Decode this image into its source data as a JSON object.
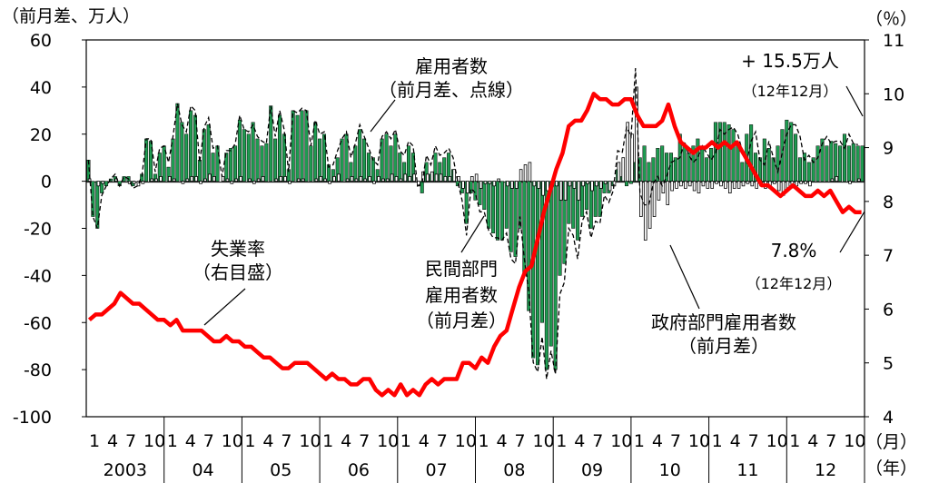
{
  "chart_data": {
    "type": "bar",
    "y_left_unit": "（前月差、万人）",
    "y_right_unit": "（％）",
    "y_left_ticks": [
      "60",
      "40",
      "20",
      "0",
      "-20",
      "-40",
      "-60",
      "-80",
      "-100"
    ],
    "y_right_ticks": [
      "11",
      "10",
      "9",
      "8",
      "7",
      "6",
      "5",
      "4"
    ],
    "ylim_left": [
      -100,
      60
    ],
    "ylim_right": [
      4,
      11
    ],
    "x_month_labels": [
      "1",
      "4",
      "7",
      "10"
    ],
    "x_month_unit": "（月）",
    "x_year_unit": "（年）",
    "year_labels": [
      "2003",
      "04",
      "05",
      "06",
      "07",
      "08",
      "09",
      "10",
      "11",
      "12"
    ],
    "annotations": {
      "total_emp_l1": "雇用者数",
      "total_emp_l2": "（前月差、点線）",
      "latest_l1": "+ 15.5万人",
      "latest_l2": "（12年12月）",
      "unemp_l1": "失業率",
      "unemp_l2": "（右目盛）",
      "private_l1": "民間部門",
      "private_l2": "雇用者数",
      "private_l3": "（前月差）",
      "gov_l1": "政府部門雇用者数",
      "gov_l2": "（前月差）",
      "rate_l1": "7.8%",
      "rate_l2": "（12年12月）"
    },
    "colors": {
      "private_bar": "#1e9b50",
      "government_bar": "#ffffff",
      "unemployment": "#ff0000",
      "total": "#000000"
    },
    "series": [
      {
        "name": "民間部門雇用者数",
        "values": [
          9,
          -15,
          -20,
          -5,
          -2,
          1,
          2,
          -2,
          2,
          2,
          -2,
          0,
          3,
          18,
          17,
          3,
          12,
          15,
          6,
          18,
          33,
          25,
          20,
          30,
          28,
          9,
          22,
          24,
          12,
          15,
          0,
          12,
          14,
          15,
          26,
          22,
          20,
          25,
          18,
          15,
          16,
          32,
          18,
          28,
          20,
          5,
          30,
          28,
          30,
          30,
          15,
          25,
          18,
          20,
          7,
          5,
          10,
          18,
          20,
          8,
          15,
          22,
          18,
          12,
          10,
          5,
          18,
          20,
          15,
          20,
          12,
          8,
          15,
          12,
          0,
          -5,
          8,
          3,
          12,
          8,
          10,
          12,
          5,
          -2,
          -5,
          -18,
          -5,
          -8,
          -10,
          -12,
          -20,
          -22,
          -25,
          -25,
          -20,
          -30,
          -32,
          -20,
          -40,
          -55,
          -75,
          -78,
          -60,
          -80,
          -70,
          -80,
          -40,
          -35,
          -18,
          -20,
          -25,
          -15,
          -12,
          -20,
          -15,
          -15,
          -5,
          -5,
          -2,
          5,
          2,
          -2,
          -1,
          8,
          10,
          15,
          8,
          10,
          14,
          15,
          12,
          12,
          10,
          20,
          15,
          12,
          15,
          18,
          15,
          10,
          14,
          25,
          25,
          25,
          24,
          22,
          15,
          8,
          20,
          24,
          12,
          10,
          18,
          14,
          10,
          15,
          22,
          26,
          25,
          20,
          10,
          12,
          8,
          10,
          15,
          18,
          15,
          17,
          16,
          15,
          20,
          15,
          16,
          15,
          15
        ]
      },
      {
        "name": "政府部門雇用者数",
        "values": [
          1,
          0,
          -2,
          -1,
          0,
          0,
          1,
          0,
          0,
          -1,
          -1,
          -2,
          -1,
          0,
          1,
          1,
          2,
          0,
          2,
          1,
          0,
          -1,
          1,
          2,
          2,
          -1,
          1,
          3,
          2,
          0,
          2,
          1,
          -1,
          1,
          2,
          0,
          1,
          -1,
          1,
          2,
          0,
          0,
          1,
          2,
          2,
          -1,
          0,
          1,
          1,
          0,
          0,
          1,
          2,
          1,
          -1,
          2,
          3,
          0,
          1,
          2,
          1,
          2,
          1,
          2,
          -1,
          2,
          1,
          1,
          3,
          2,
          1,
          3,
          2,
          3,
          -2,
          4,
          3,
          4,
          3,
          3,
          2,
          2,
          5,
          2,
          -3,
          -5,
          2,
          3,
          -3,
          -1,
          -1,
          -2,
          1,
          0,
          -2,
          -3,
          -3,
          5,
          7,
          8,
          -2,
          -3,
          -6,
          -4,
          -2,
          -2,
          -8,
          -8,
          -2,
          -3,
          -8,
          -2,
          -1,
          -4,
          -2,
          -3,
          -1,
          -4,
          -2,
          8,
          10,
          25,
          20,
          40,
          -15,
          -25,
          -20,
          -15,
          -8,
          -5,
          -10,
          -4,
          -3,
          -2,
          -3,
          -2,
          -4,
          -5,
          -2,
          -3,
          -3,
          -1,
          -2,
          -3,
          -5,
          -3,
          -3,
          -2,
          -1,
          -2,
          -3,
          -2,
          -3,
          -3,
          -1,
          -4,
          -6,
          -3,
          -2,
          -2,
          -1,
          -1,
          -2,
          0,
          0,
          0,
          0,
          1,
          2,
          0,
          0,
          -1,
          0,
          1
        ]
      },
      {
        "name": "雇用者数",
        "values": [
          9,
          -15,
          -20,
          -6,
          -2,
          1,
          3,
          -2,
          2,
          1,
          -3,
          -2,
          2,
          18,
          18,
          4,
          14,
          15,
          8,
          19,
          33,
          24,
          21,
          32,
          30,
          8,
          23,
          27,
          14,
          15,
          2,
          13,
          13,
          16,
          28,
          22,
          21,
          24,
          19,
          17,
          16,
          32,
          19,
          30,
          22,
          4,
          30,
          29,
          31,
          30,
          15,
          26,
          20,
          21,
          6,
          7,
          13,
          18,
          21,
          10,
          16,
          24,
          19,
          14,
          9,
          7,
          19,
          21,
          18,
          22,
          13,
          11,
          17,
          15,
          -2,
          -1,
          11,
          7,
          15,
          11,
          12,
          14,
          10,
          0,
          -8,
          -23,
          -3,
          -5,
          -13,
          -13,
          -21,
          -24,
          -24,
          -25,
          -22,
          -33,
          -35,
          -15,
          -33,
          -47,
          -77,
          -81,
          -66,
          -84,
          -72,
          -82,
          -48,
          -43,
          -20,
          -23,
          -33,
          -17,
          -13,
          -24,
          -17,
          -18,
          -6,
          -9,
          -4,
          13,
          12,
          23,
          19,
          48,
          -5,
          -10,
          -10,
          -1,
          2,
          -2,
          2,
          8,
          9,
          10,
          17,
          11,
          8,
          10,
          15,
          12,
          9,
          12,
          22,
          20,
          22,
          23,
          20,
          13,
          8,
          17,
          21,
          9,
          7,
          17,
          10,
          4,
          12,
          20,
          24,
          24,
          19,
          9,
          11,
          8,
          10,
          16,
          19,
          16,
          17,
          17,
          14,
          20,
          16,
          15.5
        ]
      },
      {
        "name": "失業率",
        "values": [
          5.8,
          5.9,
          5.9,
          6.0,
          6.1,
          6.3,
          6.2,
          6.1,
          6.1,
          6.0,
          5.9,
          5.8,
          5.8,
          5.7,
          5.8,
          5.6,
          5.6,
          5.6,
          5.6,
          5.5,
          5.4,
          5.4,
          5.5,
          5.4,
          5.4,
          5.3,
          5.3,
          5.2,
          5.1,
          5.1,
          5.0,
          4.9,
          4.9,
          5.0,
          5.0,
          5.0,
          4.9,
          4.8,
          4.7,
          4.8,
          4.7,
          4.7,
          4.6,
          4.6,
          4.7,
          4.7,
          4.5,
          4.4,
          4.5,
          4.4,
          4.6,
          4.4,
          4.5,
          4.4,
          4.6,
          4.7,
          4.6,
          4.7,
          4.7,
          4.7,
          5.0,
          5.0,
          4.9,
          5.1,
          5.0,
          5.3,
          5.5,
          5.6,
          6.0,
          6.4,
          6.7,
          6.8,
          7.3,
          7.8,
          8.2,
          8.6,
          8.9,
          9.4,
          9.5,
          9.5,
          9.7,
          10.0,
          9.9,
          9.9,
          9.8,
          9.8,
          9.9,
          9.9,
          9.6,
          9.4,
          9.4,
          9.4,
          9.5,
          9.8,
          9.4,
          9.1,
          9.0,
          8.9,
          9.0,
          9.0,
          9.1,
          9.0,
          9.1,
          9.0,
          9.1,
          8.9,
          8.7,
          8.5,
          8.3,
          8.3,
          8.2,
          8.1,
          8.2,
          8.3,
          8.2,
          8.1,
          8.1,
          8.2,
          8.1,
          8.2,
          8.0,
          7.8,
          7.9,
          7.8,
          7.8
        ]
      }
    ]
  }
}
